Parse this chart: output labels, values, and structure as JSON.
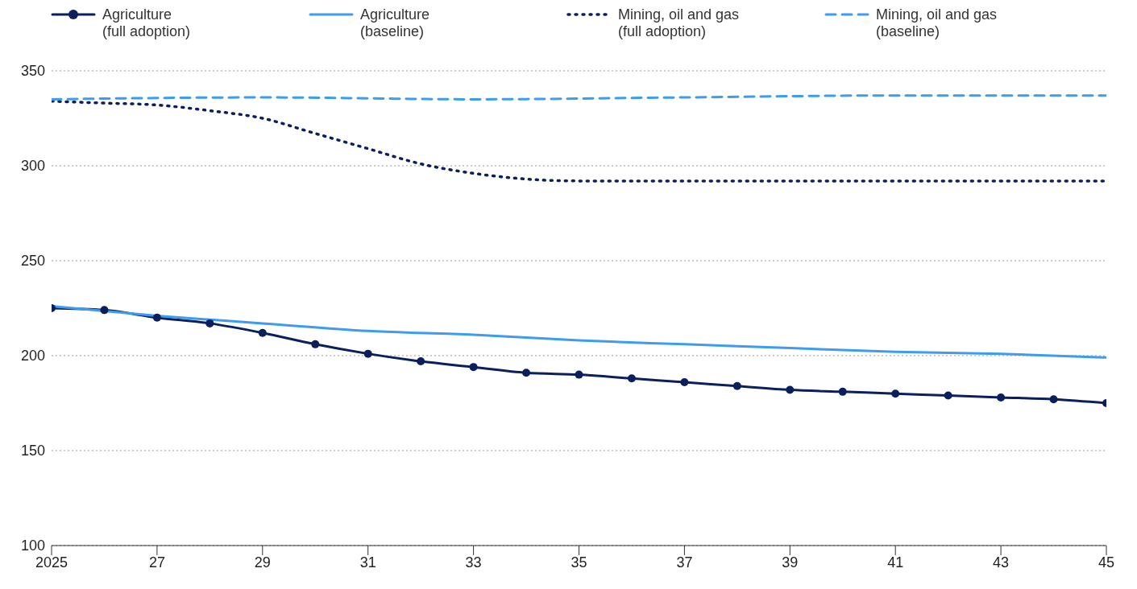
{
  "chart_data": {
    "type": "line",
    "legend": "top",
    "grid": "y",
    "xlim": [
      2025,
      2045
    ],
    "xticks": [
      2025,
      {
        "value": 2027,
        "label": "27"
      },
      {
        "value": 2029,
        "label": "29"
      },
      {
        "value": 2031,
        "label": "31"
      },
      {
        "value": 2033,
        "label": "33"
      },
      {
        "value": 2035,
        "label": "35"
      },
      {
        "value": 2037,
        "label": "37"
      },
      {
        "value": 2039,
        "label": "39"
      },
      {
        "value": 2041,
        "label": "41"
      },
      {
        "value": 2043,
        "label": "43"
      },
      {
        "value": 2045,
        "label": "45"
      }
    ],
    "ylim": [
      100,
      350
    ],
    "yticks": [
      100,
      150,
      200,
      250,
      300,
      350
    ],
    "series": [
      {
        "name": "Agriculture\n(full adoption)",
        "color": "#0a1f5c",
        "marker": "circle",
        "line_style": "solid",
        "x": [
          2025,
          2026,
          2027,
          2028,
          2029,
          2030,
          2031,
          2032,
          2033,
          2034,
          2035,
          2036,
          2037,
          2038,
          2039,
          2040,
          2041,
          2042,
          2043,
          2044,
          2045
        ],
        "values": [
          225,
          224,
          220,
          217,
          212,
          206,
          201,
          197,
          194,
          191,
          190,
          188,
          186,
          184,
          182,
          181,
          180,
          179,
          178,
          177,
          175
        ]
      },
      {
        "name": "Agriculture\n(baseline)",
        "color": "#3d9bf0",
        "marker": "none",
        "line_style": "solid",
        "x": [
          2025,
          2027,
          2029,
          2031,
          2033,
          2035,
          2037,
          2039,
          2041,
          2043,
          2045
        ],
        "values": [
          226,
          221,
          217,
          213,
          211,
          208,
          206,
          204,
          202,
          201,
          199
        ]
      },
      {
        "name": "Mining, oil and gas\n(full adoption)",
        "color": "#0a1f5c",
        "marker": "none",
        "line_style": "dotted",
        "x": [
          2025,
          2026,
          2027,
          2028,
          2029,
          2030,
          2031,
          2032,
          2033,
          2034,
          2035,
          2037,
          2039,
          2041,
          2043,
          2045
        ],
        "values": [
          334,
          333,
          332,
          329,
          325,
          317,
          309,
          301,
          296,
          293,
          292,
          292,
          292,
          292,
          292,
          292
        ]
      },
      {
        "name": "Mining, oil and gas\n(baseline)",
        "color": "#3d9bf0",
        "marker": "none",
        "line_style": "dashed",
        "x": [
          2025,
          2029,
          2033,
          2037,
          2041,
          2045
        ],
        "values": [
          335,
          336,
          335,
          336,
          337,
          337
        ]
      }
    ]
  }
}
